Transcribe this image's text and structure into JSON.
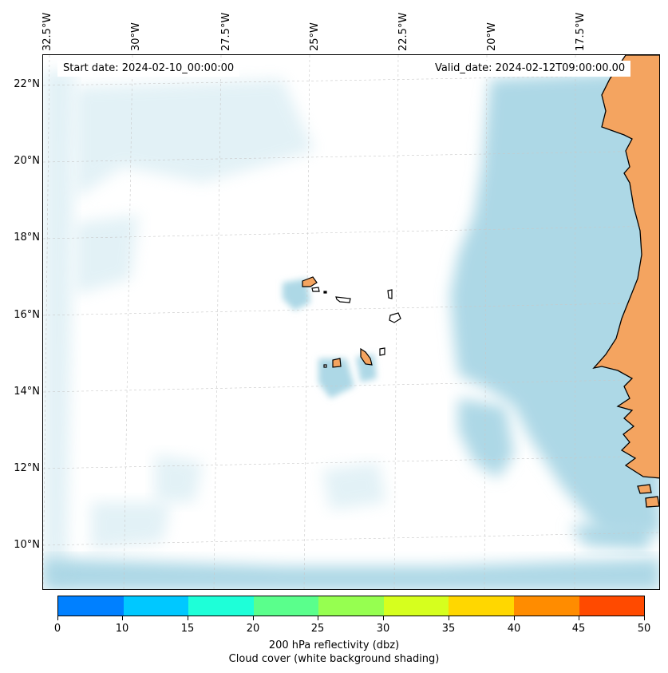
{
  "info": {
    "start_date": "Start date: 2024-02-10_00:00:00",
    "valid_date": "Valid_date: 2024-02-12T09:00:00.00"
  },
  "longitude_labels": [
    "32.5°W",
    "30°W",
    "27.5°W",
    "25°W",
    "22.5°W",
    "20°W",
    "17.5°W"
  ],
  "latitude_labels": [
    "22°N",
    "20°N",
    "18°N",
    "16°N",
    "14°N",
    "12°N",
    "10°N"
  ],
  "colorbar": {
    "colors": [
      "#0080ff",
      "#00c8ff",
      "#1effd8",
      "#5aff8c",
      "#96ff50",
      "#d6ff1e",
      "#ffd700",
      "#ff8c00",
      "#ff4a00"
    ],
    "ticks": [
      "0",
      "10",
      "15",
      "20",
      "25",
      "30",
      "35",
      "40",
      "45",
      "50"
    ],
    "label_line1": "200 hPa reflectivity (dbz)",
    "label_line2": "Cloud cover (white background shading)"
  },
  "colors": {
    "land": "#f4a460",
    "cloud": "#add8e6",
    "gridline": "#c8c8c8"
  }
}
